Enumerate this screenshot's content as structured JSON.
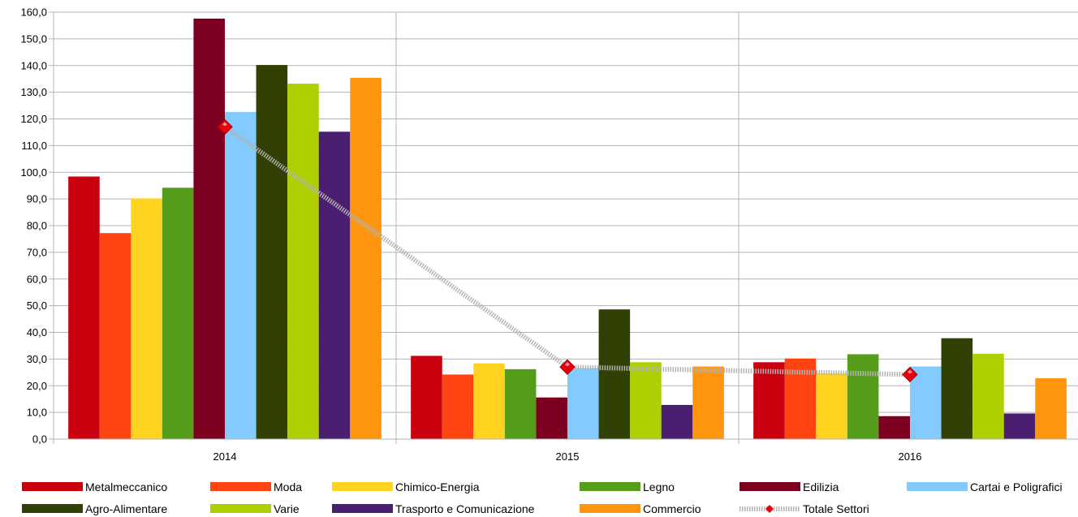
{
  "chart_data": {
    "type": "bar",
    "categories": [
      "2014",
      "2015",
      "2016"
    ],
    "ylim": [
      0,
      160
    ],
    "ytick_step": 10,
    "ytick_labels": [
      "0,0",
      "10,0",
      "20,0",
      "30,0",
      "40,0",
      "50,0",
      "60,0",
      "70,0",
      "80,0",
      "90,0",
      "100,0",
      "110,0",
      "120,0",
      "130,0",
      "140,0",
      "150,0",
      "160,0"
    ],
    "grid": true,
    "legend_position": "bottom",
    "series": [
      {
        "name": "Metalmeccanico",
        "color": "#c9000e",
        "values": [
          98.4,
          31.2,
          28.8
        ]
      },
      {
        "name": "Moda",
        "color": "#ff4311",
        "values": [
          77.2,
          24.2,
          30.2
        ]
      },
      {
        "name": "Chimico-Energia",
        "color": "#ffd320",
        "values": [
          90.2,
          28.4,
          24.6
        ]
      },
      {
        "name": "Legno",
        "color": "#579d1c",
        "values": [
          94.2,
          26.2,
          31.8
        ]
      },
      {
        "name": "Edilizia",
        "color": "#7e0021",
        "values": [
          157.6,
          15.6,
          8.6
        ]
      },
      {
        "name": "Cartai e Poligrafici",
        "color": "#83caff",
        "values": [
          122.6,
          26.6,
          27.2
        ]
      },
      {
        "name": "Agro-Alimentare",
        "color": "#314004",
        "values": [
          140.2,
          48.6,
          37.8
        ]
      },
      {
        "name": "Varie",
        "color": "#aecf00",
        "values": [
          133.2,
          28.8,
          32.0
        ]
      },
      {
        "name": "Trasporto e Comunicazione",
        "color": "#4b1f6f",
        "values": [
          115.2,
          12.8,
          9.6
        ]
      },
      {
        "name": "Commercio",
        "color": "#ff950e",
        "values": [
          135.4,
          27.2,
          22.8
        ]
      }
    ],
    "line_series": {
      "name": "Totale Settori",
      "color": "#b3b3b3",
      "marker_color": "#e8000b",
      "values": [
        117.0,
        27.0,
        24.2
      ]
    }
  },
  "legend_rows": [
    [
      "Metalmeccanico",
      "Moda",
      "Chimico-Energia",
      "Legno",
      "Edilizia",
      "Cartai e Poligrafici"
    ],
    [
      "Agro-Alimentare",
      "Varie",
      "Trasporto e Comunicazione",
      "Commercio",
      "Totale Settori"
    ]
  ]
}
